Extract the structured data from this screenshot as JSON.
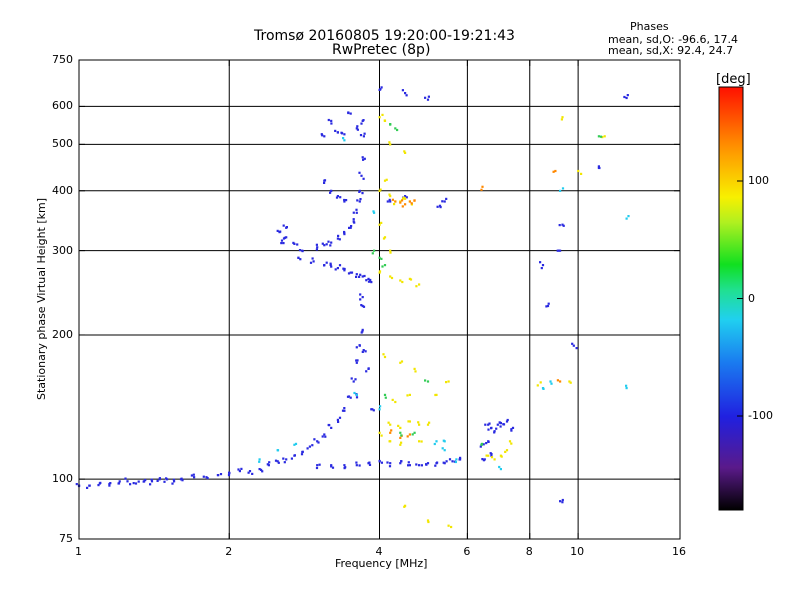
{
  "header": {
    "title_line1": "Tromsø 20160805 19:20:00-19:21:43",
    "title_line2": "RwPretec (8p)",
    "phase_heading": "Phases",
    "phase_line1": "mean, sd,O: -96.6, 17.4",
    "phase_line2": "mean, sd,X:  92.4, 24.7"
  },
  "colorbar": {
    "label": "[deg]",
    "ticks": [
      "100",
      "0",
      "-100"
    ],
    "range": [
      -180,
      180
    ],
    "colormap": "rainbow-black-to-red"
  },
  "chart_data": {
    "type": "scatter",
    "xlabel": "Frequency [MHz]",
    "ylabel": "Stationary phase Virtual Height [km]",
    "xscale": "log",
    "yscale": "log",
    "xlim": [
      1,
      16
    ],
    "ylim": [
      75,
      750
    ],
    "x_ticks": [
      "1",
      "2",
      "4",
      "6",
      "8",
      "10",
      "16"
    ],
    "x_tick_values": [
      1,
      2,
      4,
      6,
      8,
      10,
      16
    ],
    "y_ticks": [
      "750",
      "600",
      "500",
      "400",
      "300",
      "200",
      "100",
      "75"
    ],
    "y_tick_values": [
      750,
      600,
      500,
      400,
      300,
      200,
      100,
      75
    ],
    "grid_x": [
      2,
      4,
      6,
      8,
      10
    ],
    "grid_y": [
      600,
      500,
      400,
      300,
      200,
      100
    ],
    "series": [
      {
        "mode": "O",
        "color": "#2a2ae0",
        "points": [
          [
            1.0,
            97
          ],
          [
            1.05,
            97
          ],
          [
            1.1,
            98
          ],
          [
            1.15,
            97
          ],
          [
            1.2,
            98
          ],
          [
            1.25,
            99
          ],
          [
            1.3,
            98
          ],
          [
            1.35,
            99
          ],
          [
            1.4,
            99
          ],
          [
            1.45,
            100
          ],
          [
            1.5,
            100
          ],
          [
            1.55,
            99
          ],
          [
            1.6,
            100
          ],
          [
            1.7,
            101
          ],
          [
            1.8,
            101
          ],
          [
            1.9,
            102
          ],
          [
            2.0,
            103
          ],
          [
            2.1,
            104
          ],
          [
            2.2,
            104
          ],
          [
            2.3,
            105
          ],
          [
            2.4,
            107
          ],
          [
            2.5,
            109
          ],
          [
            2.6,
            110
          ],
          [
            2.7,
            112
          ],
          [
            2.8,
            114
          ],
          [
            2.9,
            117
          ],
          [
            3.0,
            120
          ],
          [
            3.1,
            124
          ],
          [
            3.2,
            128
          ],
          [
            3.3,
            133
          ],
          [
            3.4,
            139
          ],
          [
            3.5,
            148
          ],
          [
            3.55,
            160
          ],
          [
            3.6,
            175
          ],
          [
            3.65,
            190
          ],
          [
            3.7,
            205
          ],
          [
            3.7,
            230
          ],
          [
            3.7,
            240
          ],
          [
            3.75,
            185
          ],
          [
            3.6,
            150
          ],
          [
            3.8,
            170
          ],
          [
            3.85,
            140
          ],
          [
            3.0,
            107
          ],
          [
            3.2,
            107
          ],
          [
            3.4,
            107
          ],
          [
            3.6,
            107
          ],
          [
            3.8,
            108
          ],
          [
            4.0,
            109
          ],
          [
            4.2,
            108
          ],
          [
            4.4,
            108
          ],
          [
            4.6,
            107
          ],
          [
            4.8,
            107
          ],
          [
            5.0,
            108
          ],
          [
            5.2,
            108
          ],
          [
            5.4,
            108
          ],
          [
            5.6,
            109
          ],
          [
            5.8,
            110
          ],
          [
            2.95,
            285
          ],
          [
            3.1,
            280
          ],
          [
            3.2,
            278
          ],
          [
            3.3,
            276
          ],
          [
            3.4,
            273
          ],
          [
            3.5,
            270
          ],
          [
            3.6,
            268
          ],
          [
            3.7,
            265
          ],
          [
            3.8,
            262
          ],
          [
            3.85,
            258
          ],
          [
            2.5,
            330
          ],
          [
            2.6,
            320
          ],
          [
            2.7,
            310
          ],
          [
            2.8,
            300
          ],
          [
            2.75,
            290
          ],
          [
            2.6,
            335
          ],
          [
            2.55,
            315
          ],
          [
            3.0,
            305
          ],
          [
            3.1,
            308
          ],
          [
            3.2,
            312
          ],
          [
            3.3,
            318
          ],
          [
            3.4,
            325
          ],
          [
            3.5,
            335
          ],
          [
            3.55,
            345
          ],
          [
            3.6,
            360
          ],
          [
            3.65,
            380
          ],
          [
            3.65,
            400
          ],
          [
            3.68,
            430
          ],
          [
            3.7,
            470
          ],
          [
            3.72,
            520
          ],
          [
            3.7,
            560
          ],
          [
            3.6,
            540
          ],
          [
            3.4,
            525
          ],
          [
            3.3,
            530
          ],
          [
            3.2,
            560
          ],
          [
            3.1,
            520
          ],
          [
            3.5,
            580
          ],
          [
            3.2,
            400
          ],
          [
            3.3,
            390
          ],
          [
            3.4,
            380
          ],
          [
            3.1,
            420
          ],
          [
            4.2,
            380
          ],
          [
            4.5,
            390
          ],
          [
            5.4,
            380
          ],
          [
            5.3,
            370
          ],
          [
            6.6,
            130
          ],
          [
            6.7,
            128
          ],
          [
            6.8,
            126
          ],
          [
            6.9,
            130
          ],
          [
            7.0,
            131
          ],
          [
            6.4,
            118
          ],
          [
            6.6,
            120
          ],
          [
            6.5,
            110
          ],
          [
            6.7,
            112
          ],
          [
            7.2,
            132
          ],
          [
            7.4,
            128
          ],
          [
            4.0,
            650
          ],
          [
            4.5,
            640
          ],
          [
            5.0,
            620
          ],
          [
            8.5,
            280
          ],
          [
            8.7,
            230
          ],
          [
            9.2,
            300
          ],
          [
            9.3,
            340
          ],
          [
            9.2,
            90
          ],
          [
            12.5,
            625
          ],
          [
            11.0,
            450
          ],
          [
            9.8,
            190
          ]
        ]
      },
      {
        "mode": "X",
        "color": "#f2e600",
        "points": [
          [
            4.0,
            400
          ],
          [
            4.1,
            420
          ],
          [
            4.2,
            390
          ],
          [
            4.3,
            380
          ],
          [
            4.4,
            380
          ],
          [
            4.5,
            385
          ],
          [
            4.6,
            380
          ],
          [
            4.0,
            340
          ],
          [
            4.1,
            320
          ],
          [
            4.2,
            300
          ],
          [
            4.0,
            270
          ],
          [
            4.2,
            265
          ],
          [
            4.4,
            260
          ],
          [
            4.6,
            262
          ],
          [
            4.8,
            255
          ],
          [
            4.0,
            570
          ],
          [
            4.1,
            560
          ],
          [
            4.2,
            500
          ],
          [
            4.5,
            480
          ],
          [
            4.2,
            130
          ],
          [
            4.4,
            128
          ],
          [
            4.6,
            132
          ],
          [
            4.8,
            130
          ],
          [
            5.0,
            130
          ],
          [
            4.3,
            145
          ],
          [
            4.6,
            150
          ],
          [
            5.2,
            150
          ],
          [
            5.5,
            160
          ],
          [
            4.0,
            125
          ],
          [
            4.2,
            120
          ],
          [
            4.4,
            118
          ],
          [
            4.8,
            120
          ],
          [
            6.6,
            112
          ],
          [
            6.8,
            110
          ],
          [
            7.0,
            112
          ],
          [
            7.2,
            115
          ],
          [
            7.3,
            120
          ],
          [
            4.5,
            88
          ],
          [
            5.0,
            82
          ],
          [
            5.5,
            80
          ],
          [
            9.3,
            570
          ],
          [
            9.6,
            160
          ],
          [
            8.3,
            157
          ],
          [
            11.3,
            520
          ],
          [
            10.0,
            440
          ],
          [
            4.1,
            180
          ],
          [
            4.4,
            175
          ],
          [
            4.7,
            170
          ]
        ]
      },
      {
        "mode": "X-high",
        "color": "#ff8800",
        "points": [
          [
            4.3,
            380
          ],
          [
            4.4,
            378
          ],
          [
            4.5,
            375
          ],
          [
            4.6,
            380
          ],
          [
            4.7,
            382
          ],
          [
            4.2,
            125
          ],
          [
            4.4,
            122
          ],
          [
            4.6,
            124
          ],
          [
            6.4,
            402
          ],
          [
            9.0,
            440
          ],
          [
            9.2,
            160
          ]
        ]
      },
      {
        "mode": "cyan",
        "color": "#22ccee",
        "points": [
          [
            2.3,
            110
          ],
          [
            2.5,
            115
          ],
          [
            2.7,
            118
          ],
          [
            3.4,
            510
          ],
          [
            3.6,
            150
          ],
          [
            3.9,
            360
          ],
          [
            4.0,
            140
          ],
          [
            5.2,
            120
          ],
          [
            5.4,
            120
          ],
          [
            8.8,
            160
          ],
          [
            7.0,
            105
          ],
          [
            9.2,
            400
          ],
          [
            12.5,
            350
          ],
          [
            12.5,
            155
          ],
          [
            8.5,
            155
          ],
          [
            5.7,
            110
          ],
          [
            5.4,
            115
          ]
        ]
      },
      {
        "mode": "green",
        "color": "#33cc55",
        "points": [
          [
            4.2,
            550
          ],
          [
            4.3,
            540
          ],
          [
            4.0,
            290
          ],
          [
            4.1,
            280
          ],
          [
            3.9,
            300
          ],
          [
            4.1,
            150
          ],
          [
            4.4,
            125
          ],
          [
            4.7,
            125
          ],
          [
            5.0,
            160
          ],
          [
            6.4,
            118
          ],
          [
            11.0,
            520
          ]
        ]
      }
    ]
  }
}
